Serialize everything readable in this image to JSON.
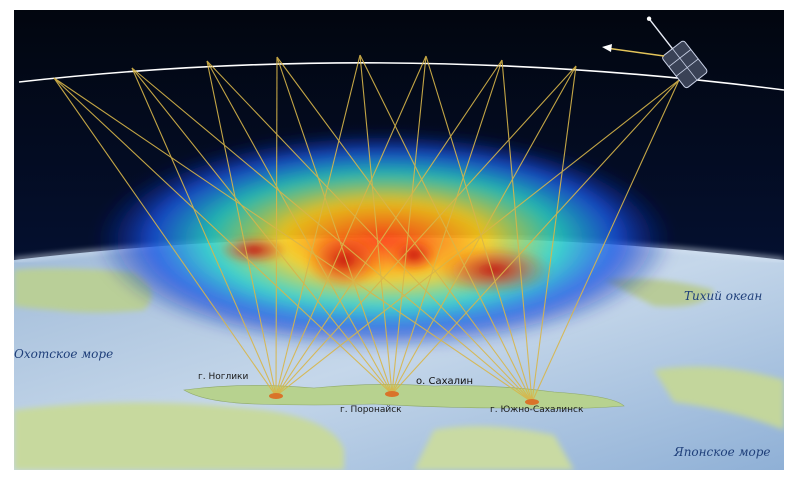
{
  "map": {
    "sea_labels": {
      "pacific": "Тихий океан",
      "okhotsk": "Охотское море",
      "japan": "Японское море"
    },
    "island_label": "о. Сахалин",
    "stations": [
      {
        "name": "г. Ноглики"
      },
      {
        "name": "г. Поронайск"
      },
      {
        "name": "г. Южно-Сахалинск"
      }
    ],
    "colors": {
      "space": "#02060f",
      "orbit": "#ffffff",
      "rays": "#d8b64a",
      "sea": "#b7cde3",
      "land": "#c9dba3",
      "station": "#d9732a",
      "ionosphere_low": "#1f3fd6",
      "ionosphere_high": "#d61a14"
    },
    "icons": {
      "satellite": "satellite-icon",
      "direction": "arrow-left-icon"
    }
  }
}
